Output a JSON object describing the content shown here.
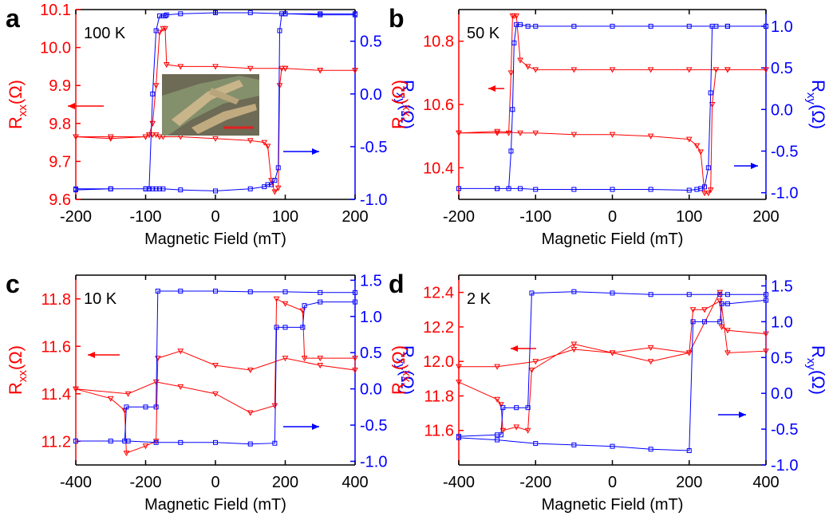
{
  "chart_data": [
    {
      "type": "line",
      "panel": "a",
      "annotation": "100 K",
      "xlabel": "Magnetic Field (mT)",
      "ylabel": [
        "R",
        "xx",
        "(Ω)"
      ],
      "y2label": [
        "R",
        "xy",
        "(Ω)"
      ],
      "xlim": [
        -200,
        200
      ],
      "xticks": [
        -200,
        -100,
        0,
        100,
        200
      ],
      "ylim": [
        9.6,
        10.1
      ],
      "yticks": [
        9.6,
        9.7,
        9.8,
        9.9,
        {
          "value": 10,
          "label": "10.0"
        },
        10.1
      ],
      "y2lim": [
        -1.0,
        0.8
      ],
      "y2ticks": [
        {
          "value": -1,
          "label": "-1.0"
        },
        -0.5,
        {
          "value": 0,
          "label": "0.0"
        },
        0.5
      ],
      "x": [
        -200,
        -150,
        -100,
        -95,
        -90,
        -85,
        -80,
        -75,
        -50,
        0,
        50,
        70,
        75,
        80,
        85,
        90,
        92,
        95,
        100,
        150,
        200,
        200,
        150,
        100,
        50,
        0,
        -50,
        -70,
        -72,
        -75,
        -80,
        -85,
        -90,
        -95,
        -100,
        -150,
        -200
      ],
      "series": [
        {
          "color": "#ff0000",
          "marker": "triangle-down",
          "values": [
            9.765,
            9.765,
            9.765,
            9.77,
            9.77,
            9.77,
            9.765,
            9.765,
            9.765,
            9.76,
            9.755,
            9.75,
            9.74,
            9.65,
            9.62,
            9.63,
            9.9,
            9.945,
            9.945,
            9.94,
            9.94,
            9.94,
            9.94,
            9.945,
            9.945,
            9.95,
            9.95,
            9.955,
            10.05,
            10.05,
            10.04,
            9.9,
            9.8,
            9.77,
            9.765,
            9.76,
            9.765
          ]
        },
        {
          "color": "#0000ff",
          "marker": "square",
          "axis": "y2",
          "values": [
            -0.9,
            -0.9,
            -0.9,
            -0.9,
            -0.9,
            -0.9,
            -0.9,
            -0.9,
            -0.91,
            -0.92,
            -0.9,
            -0.88,
            -0.86,
            -0.86,
            -0.82,
            -0.7,
            0.6,
            0.76,
            0.76,
            0.75,
            0.75,
            0.76,
            0.76,
            0.76,
            0.77,
            0.77,
            0.76,
            0.75,
            0.74,
            0.74,
            0.74,
            0.6,
            0.0,
            -0.9,
            -0.9,
            -0.9,
            -0.91
          ]
        }
      ]
    },
    {
      "type": "line",
      "panel": "b",
      "annotation": "50 K",
      "xlabel": "Magnetic Field (mT)",
      "ylabel": [
        "R",
        "xx",
        "(Ω)"
      ],
      "y2label": [
        "R",
        "xy",
        "(Ω)"
      ],
      "xlim": [
        -200,
        200
      ],
      "xticks": [
        -200,
        -100,
        0,
        100,
        200
      ],
      "ylim": [
        10.3,
        10.9
      ],
      "yticks": [
        10.4,
        10.6,
        10.8
      ],
      "y2lim": [
        -1.08,
        1.2
      ],
      "y2ticks": [
        {
          "value": -1,
          "label": "-1.0"
        },
        -0.5,
        {
          "value": 0,
          "label": "0.0"
        },
        0.5,
        {
          "value": 1,
          "label": "1.0"
        }
      ],
      "x": [
        -200,
        -150,
        -120,
        -100,
        -50,
        0,
        50,
        100,
        110,
        115,
        120,
        125,
        128,
        130,
        135,
        150,
        200,
        200,
        150,
        100,
        50,
        0,
        -50,
        -100,
        -110,
        -120,
        -125,
        -128,
        -130,
        -132,
        -135,
        -150,
        -200
      ],
      "series": [
        {
          "color": "#ff0000",
          "marker": "triangle-down",
          "values": [
            10.51,
            10.515,
            10.51,
            10.51,
            10.505,
            10.505,
            10.5,
            10.49,
            10.47,
            10.45,
            10.32,
            10.32,
            10.33,
            10.6,
            10.71,
            10.71,
            10.71,
            10.71,
            10.71,
            10.71,
            10.71,
            10.71,
            10.71,
            10.71,
            10.72,
            10.74,
            10.88,
            10.88,
            10.88,
            10.7,
            10.51,
            10.51,
            10.51
          ]
        },
        {
          "color": "#0000ff",
          "marker": "square",
          "axis": "y2",
          "values": [
            -0.95,
            -0.95,
            -0.95,
            -0.96,
            -0.96,
            -0.96,
            -0.96,
            -0.97,
            -0.96,
            -0.95,
            -0.93,
            -0.7,
            0.2,
            1.0,
            1.0,
            1.0,
            1.0,
            1.0,
            1.0,
            1.0,
            1.0,
            1.0,
            1.0,
            1.0,
            1.0,
            1.02,
            1.02,
            0.8,
            0.0,
            -0.5,
            -0.95,
            -0.95,
            -0.95
          ]
        }
      ]
    },
    {
      "type": "line",
      "panel": "c",
      "annotation": "10 K",
      "xlabel": "Magnetic Field (mT)",
      "ylabel": [
        "R",
        "xx",
        "(Ω)"
      ],
      "y2label": [
        "R",
        "xy",
        "(Ω)"
      ],
      "xlim": [
        -400,
        400
      ],
      "xticks": [
        -400,
        -200,
        0,
        200,
        400
      ],
      "ylim": [
        11.1,
        11.9
      ],
      "yticks": [
        11.2,
        11.4,
        11.6,
        11.8
      ],
      "y2lim": [
        -1.05,
        1.57
      ],
      "y2ticks": [
        {
          "value": -1,
          "label": "-1.0"
        },
        -0.5,
        {
          "value": 0,
          "label": "0.0"
        },
        0.5,
        {
          "value": 1,
          "label": "1.0"
        },
        1.5
      ],
      "x": [
        -400,
        -300,
        -260,
        -255,
        -200,
        -170,
        -165,
        -100,
        0,
        100,
        200,
        300,
        400,
        400,
        300,
        255,
        250,
        200,
        175,
        170,
        100,
        0,
        -100,
        -170,
        -250,
        -400
      ],
      "series": [
        {
          "color": "#ff0000",
          "marker": "triangle-down",
          "values": [
            11.42,
            11.38,
            11.33,
            11.15,
            11.18,
            11.2,
            11.55,
            11.58,
            11.52,
            11.5,
            11.55,
            11.52,
            11.5,
            11.55,
            11.55,
            11.55,
            11.75,
            11.78,
            11.8,
            11.35,
            11.32,
            11.4,
            11.43,
            11.45,
            11.4,
            11.42
          ]
        },
        {
          "color": "#0000ff",
          "marker": "square",
          "axis": "y2",
          "values": [
            -0.72,
            -0.72,
            -0.72,
            -0.25,
            -0.25,
            -0.25,
            1.35,
            1.35,
            1.35,
            1.34,
            1.34,
            1.33,
            1.33,
            1.2,
            1.2,
            1.15,
            0.85,
            0.85,
            0.85,
            -0.75,
            -0.76,
            -0.74,
            -0.74,
            -0.74,
            -0.72,
            -0.72
          ]
        }
      ]
    },
    {
      "type": "line",
      "panel": "d",
      "annotation": "2 K",
      "xlabel": "Magnetic Field (mT)",
      "ylabel": [
        "R",
        "xx",
        "(Ω)"
      ],
      "y2label": [
        "R",
        "xy",
        "(Ω)"
      ],
      "xlim": [
        -400,
        400
      ],
      "xticks": [
        -400,
        -200,
        0,
        200,
        400
      ],
      "ylim": [
        11.4,
        12.5
      ],
      "yticks": [
        11.6,
        11.8,
        {
          "value": 12,
          "label": "12.0"
        },
        12.2,
        12.4
      ],
      "y2lim": [
        -1.0,
        1.65
      ],
      "y2ticks": [
        {
          "value": -1,
          "label": "-1.0"
        },
        -0.5,
        {
          "value": 0,
          "label": "0.0"
        },
        0.5,
        {
          "value": 1,
          "label": "1.0"
        },
        1.5
      ],
      "x": [
        -400,
        -300,
        -290,
        -285,
        -250,
        -220,
        -210,
        -100,
        0,
        100,
        200,
        280,
        300,
        400,
        400,
        300,
        285,
        280,
        240,
        210,
        200,
        100,
        0,
        -100,
        -200,
        -300,
        -400
      ],
      "series": [
        {
          "color": "#ff0000",
          "marker": "triangle-down",
          "values": [
            11.88,
            11.78,
            11.75,
            11.6,
            11.62,
            11.6,
            11.95,
            12.1,
            12.05,
            12.0,
            12.05,
            12.4,
            12.05,
            12.06,
            12.16,
            12.18,
            12.2,
            12.35,
            12.3,
            12.3,
            12.05,
            12.08,
            12.05,
            12.07,
            12.0,
            11.97,
            11.97
          ]
        },
        {
          "color": "#0000ff",
          "marker": "square",
          "axis": "y2",
          "values": [
            -0.6,
            -0.58,
            -0.58,
            -0.2,
            -0.2,
            -0.2,
            1.4,
            1.42,
            1.4,
            1.38,
            1.38,
            1.38,
            1.38,
            1.38,
            1.3,
            1.25,
            1.25,
            1.0,
            1.0,
            1.0,
            -0.8,
            -0.78,
            -0.74,
            -0.72,
            -0.7,
            -0.65,
            -0.62
          ]
        }
      ]
    }
  ]
}
